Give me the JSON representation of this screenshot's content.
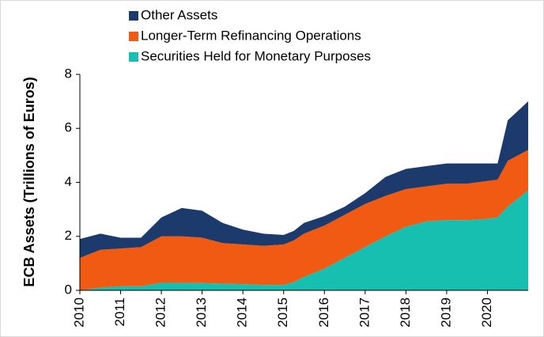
{
  "chart_data": {
    "type": "stacked_area",
    "y_label": "ECB Assets (Trillions of Euros)",
    "x": [
      2010,
      2010.5,
      2011,
      2011.5,
      2012,
      2012.5,
      2013,
      2013.5,
      2014,
      2014.5,
      2015,
      2015.25,
      2015.5,
      2016,
      2016.5,
      2017,
      2017.5,
      2018,
      2018.5,
      2019,
      2019.5,
      2020,
      2020.25,
      2020.5,
      2021
    ],
    "series": [
      {
        "name": "Securities Held for Monetary Purposes",
        "color": "#17bfb1",
        "values": [
          0,
          0.1,
          0.15,
          0.15,
          0.28,
          0.28,
          0.27,
          0.25,
          0.23,
          0.2,
          0.2,
          0.3,
          0.5,
          0.8,
          1.2,
          1.6,
          2.0,
          2.35,
          2.55,
          2.6,
          2.6,
          2.65,
          2.7,
          3.1,
          3.7
        ]
      },
      {
        "name": "Longer-Term Refinancing Operations",
        "color": "#f15a12",
        "values": [
          1.2,
          1.4,
          1.4,
          1.45,
          1.72,
          1.72,
          1.68,
          1.5,
          1.47,
          1.45,
          1.5,
          1.55,
          1.6,
          1.6,
          1.6,
          1.6,
          1.5,
          1.4,
          1.3,
          1.35,
          1.35,
          1.4,
          1.4,
          1.7,
          1.5
        ]
      },
      {
        "name": "Other Assets",
        "color": "#1c3a6b",
        "values": [
          0.7,
          0.6,
          0.4,
          0.35,
          0.7,
          1.05,
          1.0,
          0.75,
          0.55,
          0.45,
          0.35,
          0.35,
          0.4,
          0.35,
          0.3,
          0.4,
          0.7,
          0.75,
          0.75,
          0.75,
          0.75,
          0.65,
          0.6,
          1.5,
          1.8
        ]
      }
    ],
    "xlim": [
      2010,
      2021
    ],
    "xticks": [
      2010,
      2011,
      2012,
      2013,
      2014,
      2015,
      2016,
      2017,
      2018,
      2019,
      2020
    ],
    "ylim": [
      0,
      8
    ],
    "yticks": [
      0,
      2,
      4,
      6,
      8
    ],
    "grid": false,
    "legend": "top"
  }
}
